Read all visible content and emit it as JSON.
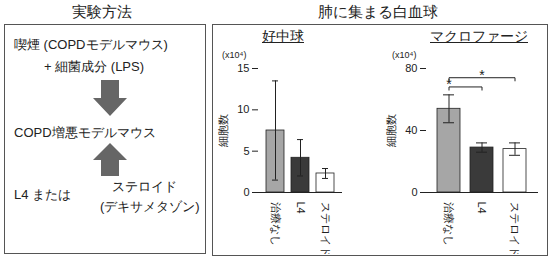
{
  "method": {
    "title": "実験方法",
    "steps": [
      "喫煙 (COPDモデルマウス)",
      "+ 細菌成分 (LPS)"
    ],
    "model": "COPD増悪モデルマウス",
    "treatment": [
      "L4 または",
      "ステロイド",
      "(デキサメタゾン)"
    ]
  },
  "results_title": "肺に集まる白血球",
  "chart_data": [
    {
      "type": "bar",
      "title": "好中球",
      "ylabel": "細胞数",
      "y_unit": "(x10⁴)",
      "categories": [
        "治療なし",
        "L4",
        "ステロイド"
      ],
      "values": [
        7.5,
        4.2,
        2.3
      ],
      "errors": [
        6,
        2.2,
        0.6
      ],
      "colors": [
        "#a6a6a6",
        "#3a3a3a",
        "#ffffff"
      ],
      "ylim": [
        0,
        15
      ],
      "yticks": [
        0,
        5,
        10,
        15
      ]
    },
    {
      "type": "bar",
      "title": "マクロファージ",
      "ylabel": "細胞数",
      "y_unit": "(x10⁴)",
      "categories": [
        "治療なし",
        "L4",
        "ステロイド"
      ],
      "values": [
        54,
        29,
        28
      ],
      "errors": [
        9,
        3,
        4
      ],
      "colors": [
        "#a6a6a6",
        "#3a3a3a",
        "#ffffff"
      ],
      "ylim": [
        0,
        80
      ],
      "yticks": [
        0,
        40,
        80
      ],
      "significance": [
        {
          "from": 0,
          "to": 1,
          "label": "*"
        },
        {
          "from": 0,
          "to": 2,
          "label": "*"
        }
      ]
    }
  ]
}
